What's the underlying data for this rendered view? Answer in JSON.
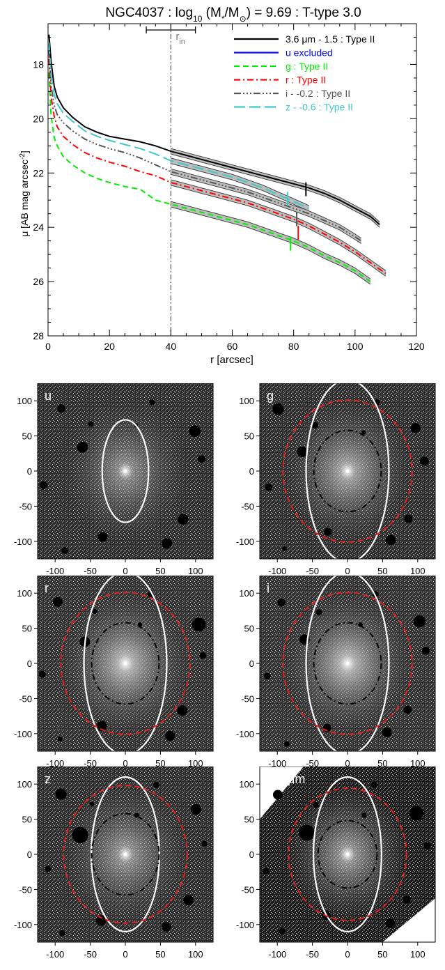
{
  "chart_data": [
    {
      "type": "line",
      "title": "NGC4037 : log10 (M*/M⊙) = 9.69 : T-type 3.0",
      "title_parts": {
        "pre": "NGC4037 : log",
        "sub": "10",
        "mid": " (M",
        "mid_sub": "*",
        "mid2": "/M",
        "mid2_sub": "⊙",
        "post": ") = 9.69 : T-type 3.0"
      },
      "xlabel": "r [arcsec]",
      "ylabel": "μ [AB mag arcsec⁻²]",
      "ylabel_parts": {
        "pre": "μ [AB mag arcsec",
        "sup": "-2",
        "post": "]"
      },
      "xlim": [
        0,
        120
      ],
      "ylim": [
        28,
        16.5
      ],
      "y_inverted": true,
      "x_ticks": [
        0,
        20,
        40,
        60,
        80,
        100,
        120
      ],
      "y_ticks": [
        18,
        20,
        22,
        24,
        26,
        28
      ],
      "r_in": {
        "label": "r",
        "sub": "in",
        "value": 40,
        "range": [
          32,
          48
        ]
      },
      "legend_position": "top-right",
      "series": [
        {
          "name": "3.6 μm - 1.5 : Type II",
          "color": "#000000",
          "dash": "solid",
          "x": [
            0.3,
            1,
            2,
            3,
            5,
            8,
            12,
            16,
            20,
            25,
            30,
            35,
            40,
            45,
            50,
            55,
            60,
            65,
            70,
            75,
            80,
            85,
            90,
            95,
            100,
            105,
            108
          ],
          "y": [
            16.9,
            17.9,
            18.8,
            19.2,
            19.6,
            19.95,
            20.3,
            20.5,
            20.65,
            20.75,
            20.85,
            21.0,
            21.2,
            21.35,
            21.5,
            21.65,
            21.8,
            21.95,
            22.1,
            22.25,
            22.4,
            22.55,
            22.75,
            23.0,
            23.3,
            23.6,
            23.9
          ],
          "break": {
            "r": 84,
            "mu": 22.6
          }
        },
        {
          "name": "u excluded",
          "color": "#0000ff",
          "dash": "solid",
          "x": [],
          "y": []
        },
        {
          "name": "g : Type II",
          "color": "#00ee00",
          "dash": "dash",
          "x": [
            0.3,
            1,
            2,
            3,
            5,
            8,
            12,
            16,
            20,
            25,
            30,
            35,
            40,
            45,
            50,
            55,
            60,
            65,
            70,
            75,
            80,
            85,
            90,
            95,
            100,
            105
          ],
          "y": [
            18.3,
            19.9,
            20.7,
            21.0,
            21.4,
            21.7,
            22.0,
            22.2,
            22.35,
            22.5,
            22.6,
            23.0,
            23.15,
            23.3,
            23.45,
            23.6,
            23.75,
            23.9,
            24.1,
            24.3,
            24.5,
            24.75,
            25.05,
            25.3,
            25.6,
            26.0
          ],
          "break": {
            "r": 79,
            "mu": 24.6
          }
        },
        {
          "name": "r : Type II",
          "color": "#ff0000",
          "dash": "dashdot",
          "x": [
            0.3,
            1,
            2,
            3,
            5,
            8,
            12,
            16,
            20,
            25,
            30,
            35,
            40,
            45,
            50,
            55,
            60,
            65,
            70,
            75,
            80,
            85,
            90,
            95,
            100,
            105,
            110
          ],
          "y": [
            17.8,
            19.2,
            19.9,
            20.3,
            20.65,
            20.95,
            21.25,
            21.45,
            21.6,
            21.75,
            21.95,
            22.1,
            22.35,
            22.5,
            22.65,
            22.8,
            22.95,
            23.1,
            23.3,
            23.5,
            23.7,
            23.95,
            24.25,
            24.55,
            24.9,
            25.3,
            25.7
          ],
          "break": {
            "r": 81.5,
            "mu": 24.2
          }
        },
        {
          "name": "i - -0.2 : Type II",
          "color": "#555555",
          "dash": "dashdotdotdot",
          "x": [
            0.3,
            1,
            2,
            3,
            5,
            8,
            12,
            16,
            20,
            25,
            30,
            35,
            40,
            45,
            50,
            55,
            60,
            65,
            70,
            75,
            80,
            85,
            90,
            95,
            100,
            102
          ],
          "y": [
            17.5,
            18.8,
            19.5,
            19.85,
            20.15,
            20.45,
            20.75,
            20.95,
            21.1,
            21.25,
            21.45,
            21.7,
            21.95,
            22.1,
            22.25,
            22.4,
            22.55,
            22.7,
            22.9,
            23.1,
            23.3,
            23.5,
            23.75,
            24.0,
            24.35,
            24.5
          ],
          "break": {
            "r": 81,
            "mu": 23.7
          }
        },
        {
          "name": "z - -0.6 : Type II",
          "color": "#40c8c8",
          "dash": "longdash",
          "x": [
            0.3,
            1,
            2,
            3,
            5,
            8,
            12,
            16,
            20,
            25,
            30,
            35,
            40,
            45,
            50,
            55,
            60,
            65,
            70,
            75,
            80,
            85
          ],
          "y": [
            17.2,
            18.4,
            19.1,
            19.45,
            19.8,
            20.1,
            20.45,
            20.65,
            20.8,
            20.95,
            21.1,
            21.3,
            21.55,
            21.7,
            21.85,
            22.0,
            22.15,
            22.35,
            22.55,
            22.8,
            23.05,
            23.3
          ],
          "break": {
            "r": 78,
            "mu": 22.95
          }
        }
      ]
    },
    {
      "type": "image-panels",
      "x_ticks": [
        -100,
        -50,
        0,
        50,
        100
      ],
      "y_ticks": [
        100,
        50,
        0,
        -50,
        -100
      ],
      "range": [
        -125,
        125
      ],
      "panels": [
        {
          "label": "u",
          "outer": [
            66,
            73
          ],
          "break": null,
          "inner": null,
          "bg": "#2c2c2c",
          "glow": 0.55
        },
        {
          "label": "g",
          "outer": [
            118,
            130
          ],
          "break": [
            92,
            101
          ],
          "inner": [
            48,
            58
          ],
          "bg": "#2c2c2c",
          "glow": 0.7
        },
        {
          "label": "r",
          "outer": [
            118,
            130
          ],
          "break": [
            92,
            101
          ],
          "inner": [
            48,
            58
          ],
          "bg": "#303030",
          "glow": 0.8
        },
        {
          "label": "i",
          "outer": [
            118,
            130
          ],
          "break": [
            92,
            101
          ],
          "inner": [
            48,
            58
          ],
          "bg": "#303030",
          "glow": 0.8
        },
        {
          "label": "z",
          "outer": [
            97,
            110
          ],
          "break": [
            88,
            98
          ],
          "inner": [
            48,
            58
          ],
          "bg": "#2c2c2c",
          "glow": 0.6
        },
        {
          "label": "3.6 μm",
          "outer": [
            97,
            110
          ],
          "break": [
            84,
            94
          ],
          "inner": [
            42,
            48
          ],
          "bg": "#1a1a1a",
          "glow": 0.65
        }
      ]
    }
  ]
}
